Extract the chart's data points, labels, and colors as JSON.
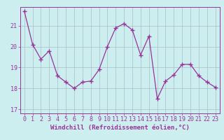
{
  "x": [
    0,
    1,
    2,
    3,
    4,
    5,
    6,
    7,
    8,
    9,
    10,
    11,
    12,
    13,
    14,
    15,
    16,
    17,
    18,
    19,
    20,
    21,
    22,
    23
  ],
  "y": [
    21.7,
    20.1,
    19.4,
    19.8,
    18.6,
    18.3,
    18.0,
    18.3,
    18.35,
    18.9,
    20.0,
    20.9,
    21.1,
    20.8,
    19.6,
    20.5,
    17.5,
    18.35,
    18.65,
    19.15,
    19.15,
    18.6,
    18.3,
    18.05
  ],
  "line_color": "#993399",
  "marker": "+",
  "marker_size": 4,
  "bg_color": "#cceeee",
  "grid_color": "#aabbcc",
  "xlabel": "Windchill (Refroidissement éolien,°C)",
  "xlabel_fontsize": 6.5,
  "tick_fontsize": 6,
  "ylim": [
    16.8,
    21.9
  ],
  "yticks": [
    17,
    18,
    19,
    20,
    21
  ],
  "xlim": [
    -0.5,
    23.5
  ],
  "xticks": [
    0,
    1,
    2,
    3,
    4,
    5,
    6,
    7,
    8,
    9,
    10,
    11,
    12,
    13,
    14,
    15,
    16,
    17,
    18,
    19,
    20,
    21,
    22,
    23
  ]
}
